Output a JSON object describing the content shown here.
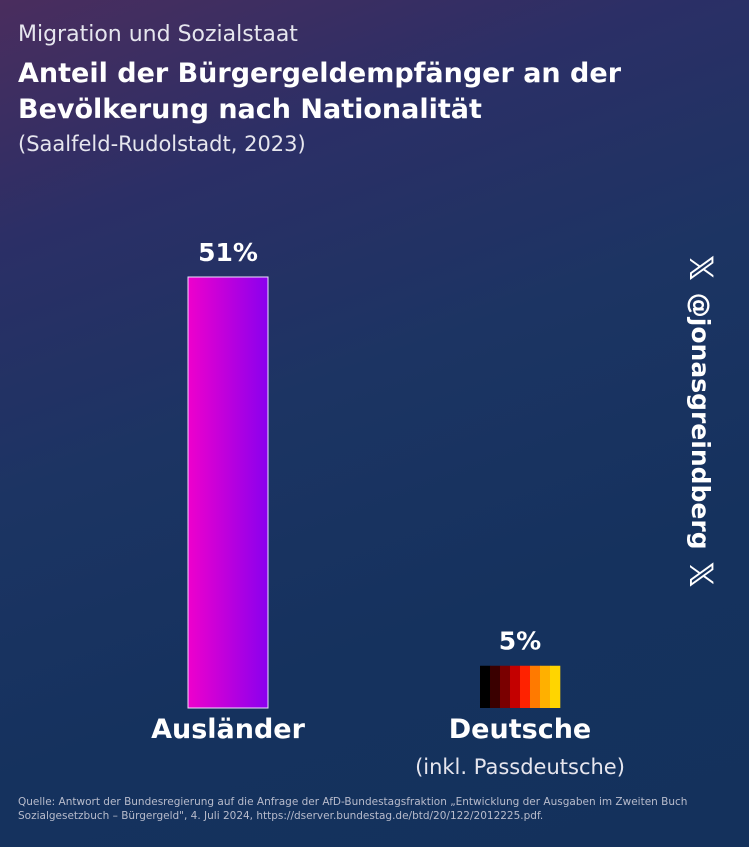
{
  "header": {
    "topic": "Migration und Sozialstaat",
    "title": "Anteil der Bürgergeldempfänger an der Bevölkerung nach Nationalität",
    "region_year": "(Saalfeld-Rudolstadt, 2023)"
  },
  "chart_data": {
    "type": "bar",
    "title": "Anteil der Bürgergeldempfänger an der Bevölkerung nach Nationalität",
    "categories": [
      "Ausländer",
      "Deutsche"
    ],
    "category_notes": [
      "",
      "(inkl. Passdeutsche)"
    ],
    "values": [
      51,
      5
    ],
    "value_labels": [
      "51%",
      "5%"
    ],
    "unit": "%",
    "ylim": [
      0,
      51
    ],
    "grid": false,
    "colors": {
      "auslaender_start": "#ee00cc",
      "auslaender_end": "#8a00ee",
      "deutsche_stripes": [
        "#000000",
        "#3a0000",
        "#7a0000",
        "#c40000",
        "#ff2200",
        "#ff7a00",
        "#ffb000",
        "#ffd500"
      ]
    }
  },
  "watermark": {
    "handle": "@jonasgreindberg",
    "icon": "x-logo-icon"
  },
  "source": {
    "text": "Quelle: Antwort der Bundesregierung auf die Anfrage der AfD-Bundestagsfraktion „Entwicklung der Ausgaben im Zweiten Buch Sozialgesetzbuch – Bürgergeld\", 4. Juli 2024, https://dserver.bundestag.de/btd/20/122/2012225.pdf."
  }
}
